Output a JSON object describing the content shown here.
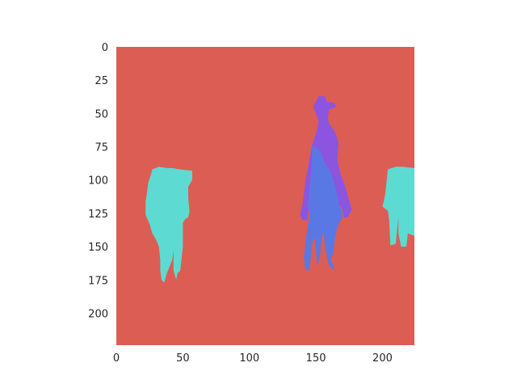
{
  "chart_data": {
    "type": "heatmap",
    "title": "",
    "xlabel": "",
    "ylabel": "",
    "image_size": [
      224,
      224
    ],
    "xlim": [
      0,
      224
    ],
    "ylim": [
      224,
      0
    ],
    "x_ticks": [
      0,
      50,
      100,
      150,
      200
    ],
    "y_ticks": [
      0,
      25,
      50,
      75,
      100,
      125,
      150,
      175,
      200
    ],
    "grid": false,
    "colors": {
      "background": "#dc5d54",
      "horse": "#5ddbd2",
      "rider": "#8b55e0",
      "ridden_horse": "#5a78e3"
    },
    "segments": [
      {
        "label_class": "horse",
        "color": "horse",
        "polygons": [
          [
            [
              27,
              92
            ],
            [
              32,
              90
            ],
            [
              38,
              91
            ],
            [
              42,
              91
            ],
            [
              48,
              92
            ],
            [
              57,
              93
            ],
            [
              57,
              100
            ],
            [
              54,
              105
            ],
            [
              54,
              113
            ],
            [
              55,
              124
            ],
            [
              54,
              128
            ],
            [
              52,
              129
            ],
            [
              50,
              132
            ],
            [
              50,
              150
            ],
            [
              48,
              168
            ],
            [
              46,
              170
            ],
            [
              45,
              175
            ],
            [
              43,
              168
            ],
            [
              43,
              153
            ],
            [
              42,
              160
            ],
            [
              38,
              170
            ],
            [
              36,
              177
            ],
            [
              34,
              175
            ],
            [
              33,
              168
            ],
            [
              33,
              160
            ],
            [
              32,
              150
            ],
            [
              30,
              145
            ],
            [
              27,
              140
            ],
            [
              25,
              133
            ],
            [
              22,
              126
            ],
            [
              22,
              116
            ],
            [
              23,
              110
            ],
            [
              24,
              102
            ],
            [
              26,
              96
            ]
          ]
        ]
      },
      {
        "label_class": "horse",
        "color": "horse",
        "polygons": [
          [
            [
              204,
              92
            ],
            [
              210,
              90
            ],
            [
              215,
              90
            ],
            [
              224,
              91
            ],
            [
              224,
              142
            ],
            [
              219,
              140
            ],
            [
              218,
              150
            ],
            [
              214,
              150
            ],
            [
              212,
              140
            ],
            [
              212,
              128
            ],
            [
              210,
              148
            ],
            [
              206,
              149
            ],
            [
              205,
              130
            ],
            [
              204,
              123
            ],
            [
              200,
              120
            ],
            [
              202,
              111
            ],
            [
              203,
              102
            ]
          ]
        ]
      },
      {
        "label_class": "person",
        "color": "rider",
        "polygons": [
          [
            [
              152,
              37
            ],
            [
              157,
              37
            ],
            [
              158,
              41
            ],
            [
              164,
              42
            ],
            [
              165,
              45
            ],
            [
              160,
              47
            ],
            [
              159,
              53
            ],
            [
              160,
              58
            ],
            [
              164,
              63
            ],
            [
              167,
              72
            ],
            [
              166,
              84
            ],
            [
              168,
              94
            ],
            [
              172,
              105
            ],
            [
              174,
              112
            ],
            [
              177,
              122
            ],
            [
              174,
              128
            ],
            [
              171,
              128
            ],
            [
              170,
              122
            ],
            [
              167,
              118
            ],
            [
              163,
              100
            ],
            [
              158,
              90
            ],
            [
              153,
              84
            ],
            [
              148,
              98
            ],
            [
              147,
              112
            ],
            [
              144,
              124
            ],
            [
              144,
              130
            ],
            [
              140,
              130
            ],
            [
              138,
              126
            ],
            [
              140,
              118
            ],
            [
              142,
              102
            ],
            [
              146,
              80
            ],
            [
              147,
              74
            ],
            [
              151,
              62
            ],
            [
              152,
              56
            ],
            [
              150,
              50
            ],
            [
              148,
              45
            ],
            [
              150,
              41
            ]
          ]
        ]
      },
      {
        "label_class": "horse",
        "color": "ridden_horse",
        "polygons": [
          [
            [
              147,
              74
            ],
            [
              151,
              76
            ],
            [
              154,
              80
            ],
            [
              156,
              86
            ],
            [
              160,
              92
            ],
            [
              163,
              100
            ],
            [
              166,
              110
            ],
            [
              167,
              118
            ],
            [
              170,
              124
            ],
            [
              170,
              128
            ],
            [
              168,
              131
            ],
            [
              166,
              136
            ],
            [
              164,
              146
            ],
            [
              163,
              155
            ],
            [
              161,
              160
            ],
            [
              164,
              166
            ],
            [
              162,
              167
            ],
            [
              159,
              162
            ],
            [
              157,
              150
            ],
            [
              156,
              143
            ],
            [
              156,
              137
            ],
            [
              154,
              146
            ],
            [
              153,
              158
            ],
            [
              151,
              164
            ],
            [
              150,
              153
            ],
            [
              149,
              143
            ],
            [
              147,
              148
            ],
            [
              146,
              160
            ],
            [
              145,
              168
            ],
            [
              142,
              167
            ],
            [
              141,
              158
            ],
            [
              143,
              140
            ],
            [
              145,
              128
            ],
            [
              144,
              118
            ],
            [
              145,
              108
            ],
            [
              146,
              96
            ],
            [
              147,
              88
            ]
          ]
        ]
      }
    ]
  }
}
